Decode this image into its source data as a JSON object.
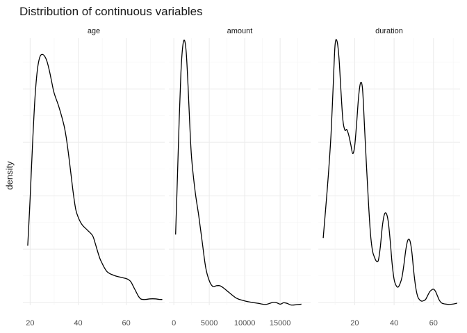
{
  "chart_data": {
    "type": "line",
    "title": "Distribution of continuous variables",
    "ylabel": "density",
    "facets": [
      {
        "label": "age",
        "xlim": [
          17,
          76
        ],
        "ylim": [
          0,
          0.0461
        ],
        "xticks": [
          20,
          40,
          60
        ],
        "x": [
          19,
          20,
          21,
          22,
          23,
          24,
          25,
          26,
          27,
          28,
          29,
          30,
          32,
          34,
          35,
          36,
          37,
          38,
          39,
          40,
          41,
          42,
          44,
          46,
          47,
          48,
          49,
          50,
          51,
          52,
          53,
          54,
          56,
          58,
          60,
          61,
          62,
          63,
          64,
          65,
          66,
          67,
          68,
          70,
          72,
          74,
          75
        ],
        "y": [
          0.0103,
          0.0185,
          0.0278,
          0.0357,
          0.0406,
          0.0428,
          0.0433,
          0.043,
          0.0421,
          0.0405,
          0.0385,
          0.0366,
          0.0342,
          0.0312,
          0.029,
          0.026,
          0.0226,
          0.0192,
          0.0165,
          0.0152,
          0.0143,
          0.0137,
          0.0129,
          0.012,
          0.0108,
          0.0094,
          0.0081,
          0.0072,
          0.0064,
          0.0058,
          0.0055,
          0.0053,
          0.005,
          0.0048,
          0.0046,
          0.0044,
          0.004,
          0.0032,
          0.0024,
          0.0016,
          0.0011,
          0.001,
          0.001,
          0.0011,
          0.0011,
          0.001,
          0.001
        ]
      },
      {
        "label": "amount",
        "xlim": [
          -700,
          19300
        ],
        "ylim": [
          0,
          0.00037
        ],
        "xticks": [
          0,
          5000,
          10000,
          15000
        ],
        "xticklabels": [
          "0",
          "5000",
          "10000",
          "15000"
        ],
        "x": [
          250,
          500,
          750,
          1000,
          1250,
          1500,
          1750,
          2000,
          2250,
          2500,
          3000,
          3500,
          4000,
          4500,
          5000,
          5500,
          6000,
          6500,
          7000,
          7500,
          8000,
          8500,
          9000,
          10000,
          11000,
          12000,
          12500,
          13000,
          13500,
          14000,
          14500,
          15000,
          15500,
          16000,
          16500,
          17000,
          18000
        ],
        "y": [
          9.8e-05,
          0.000175,
          0.000255,
          0.000322,
          0.000358,
          0.000367,
          0.00035,
          0.000305,
          0.00025,
          0.000205,
          0.000158,
          0.000125,
          8.8e-05,
          5.2e-05,
          3.4e-05,
          2.6e-05,
          2.7e-05,
          2.7e-05,
          2.4e-05,
          2e-05,
          1.6e-05,
          1.2e-05,
          9e-06,
          6e-06,
          4e-06,
          2.5e-06,
          1.5e-06,
          1.2e-06,
          2.5e-06,
          4e-06,
          3.5e-06,
          1.5e-06,
          3.5e-06,
          2.5e-06,
          4e-07,
          4e-07,
          1.5e-06
        ]
      },
      {
        "label": "duration",
        "xlim": [
          1.5,
          73.5
        ],
        "ylim": [
          0,
          0.0648
        ],
        "xticks": [
          20,
          40,
          60
        ],
        "x": [
          4,
          6,
          7,
          8,
          9,
          10,
          11,
          12,
          13,
          14,
          15,
          16,
          17,
          18,
          19,
          20,
          21,
          22,
          23,
          24,
          25,
          26,
          27,
          28,
          29,
          30,
          31,
          32,
          33,
          34,
          35,
          36,
          37,
          38,
          39,
          40,
          41,
          42,
          43,
          44,
          45,
          46,
          47,
          48,
          49,
          50,
          51,
          52,
          53,
          54,
          55,
          56,
          57,
          58,
          59,
          60,
          61,
          62,
          63,
          64,
          65,
          66,
          68,
          70,
          72
        ],
        "y": [
          0.0163,
          0.0278,
          0.0342,
          0.0417,
          0.0524,
          0.063,
          0.0641,
          0.0601,
          0.0521,
          0.0449,
          0.0425,
          0.0426,
          0.0412,
          0.039,
          0.0368,
          0.0387,
          0.0443,
          0.0507,
          0.054,
          0.0523,
          0.0431,
          0.0336,
          0.0248,
          0.0174,
          0.0133,
          0.0117,
          0.0107,
          0.0109,
          0.0141,
          0.019,
          0.0219,
          0.0223,
          0.0204,
          0.0158,
          0.0101,
          0.0063,
          0.0048,
          0.0044,
          0.0052,
          0.0068,
          0.0099,
          0.0136,
          0.0158,
          0.0157,
          0.013,
          0.0081,
          0.0043,
          0.0021,
          0.0013,
          0.001,
          0.0011,
          0.0014,
          0.0023,
          0.0032,
          0.0037,
          0.0039,
          0.0034,
          0.0023,
          0.0012,
          0.0006,
          0.0004,
          0.0003,
          0.0002,
          0.0003,
          0.0005
        ]
      }
    ],
    "grid": true,
    "legend": "none"
  }
}
